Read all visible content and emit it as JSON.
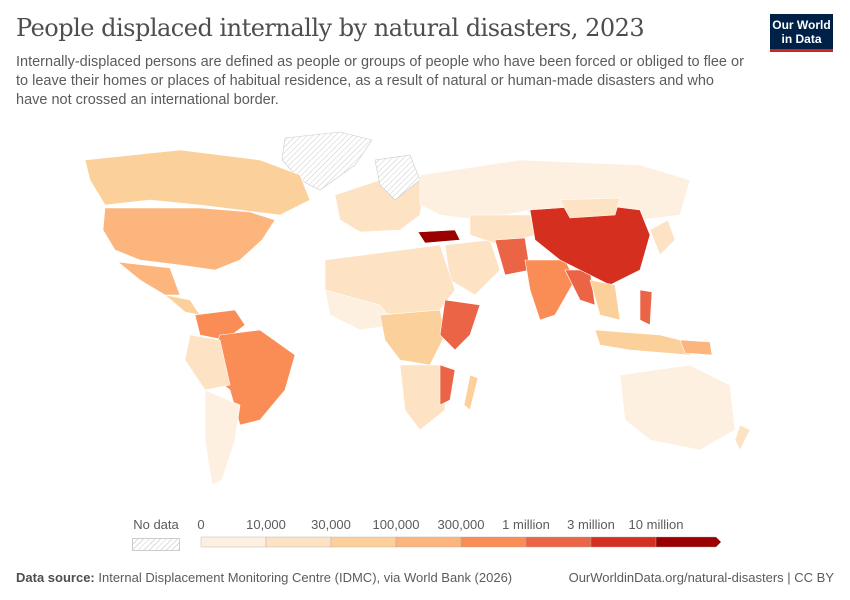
{
  "header": {
    "title": "People displaced internally by natural disasters, 2023",
    "subtitle": "Internally-displaced persons are defined as people or groups of people who have been forced or obliged to flee or to leave their homes or places of habitual residence, as a result of natural or human-made disasters and who have not crossed an international border.",
    "logo": "Our World in Data"
  },
  "legend": {
    "no_data_label": "No data",
    "ticks": [
      "0",
      "10,000",
      "30,000",
      "100,000",
      "300,000",
      "1 million",
      "3 million",
      "10 million"
    ],
    "bins": [
      {
        "range": "0–10,000",
        "color": "#fef0e1"
      },
      {
        "range": "10,000–30,000",
        "color": "#fde2c3"
      },
      {
        "range": "30,000–100,000",
        "color": "#fcd09b"
      },
      {
        "range": "100,000–300,000",
        "color": "#fbb57d"
      },
      {
        "range": "300,000–1 million",
        "color": "#fa8c55"
      },
      {
        "range": "1 million–3 million",
        "color": "#ec6446"
      },
      {
        "range": "3 million–10 million",
        "color": "#d52f20"
      },
      {
        "range": "10 million+",
        "color": "#9a0000"
      }
    ]
  },
  "footer": {
    "source_label": "Data source:",
    "source": "Internal Displacement Monitoring Centre (IDMC), via World Bank (2026)",
    "url_license": "OurWorldinData.org/natural-disasters | CC BY"
  }
}
